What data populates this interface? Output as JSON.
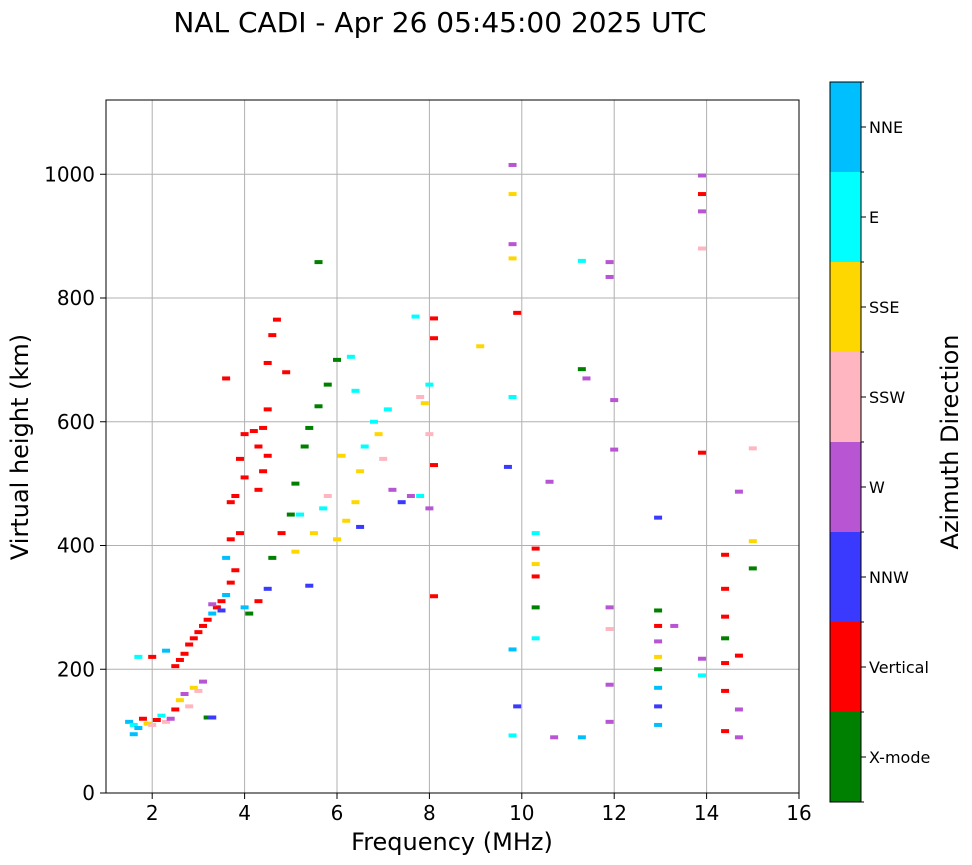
{
  "chart_data": {
    "type": "scatter",
    "title": "NAL CADI - Apr 26 05:45:00 2025 UTC",
    "xlabel": "Frequency (MHz)",
    "ylabel": "Virtual height (km)",
    "xlim": [
      1,
      16
    ],
    "ylim": [
      0,
      1120
    ],
    "xticks": [
      2,
      4,
      6,
      8,
      10,
      12,
      14,
      16
    ],
    "yticks": [
      0,
      200,
      400,
      600,
      800,
      1000
    ],
    "grid": true,
    "colorbar": {
      "label": "Azimuth Direction",
      "categories": [
        {
          "name": "X-mode",
          "color": "#008000"
        },
        {
          "name": "Vertical",
          "color": "#ff0000"
        },
        {
          "name": "NNW",
          "color": "#3a3aff"
        },
        {
          "name": "W",
          "color": "#b855d3"
        },
        {
          "name": "SSW",
          "color": "#ffb6c1"
        },
        {
          "name": "SSE",
          "color": "#ffd700"
        },
        {
          "name": "E",
          "color": "#00ffff"
        },
        {
          "name": "NNE",
          "color": "#00bfff"
        }
      ]
    },
    "echoes": [
      {
        "cat": "NNE",
        "f": 1.5,
        "h": 115
      },
      {
        "cat": "E",
        "f": 1.6,
        "h": 110
      },
      {
        "cat": "NNE",
        "f": 1.7,
        "h": 105
      },
      {
        "cat": "Vertical",
        "f": 1.8,
        "h": 120
      },
      {
        "cat": "SSE",
        "f": 1.9,
        "h": 112
      },
      {
        "cat": "NNE",
        "f": 1.6,
        "h": 95
      },
      {
        "cat": "SSW",
        "f": 2.0,
        "h": 110
      },
      {
        "cat": "Vertical",
        "f": 2.1,
        "h": 118
      },
      {
        "cat": "E",
        "f": 2.2,
        "h": 125
      },
      {
        "cat": "SSW",
        "f": 2.3,
        "h": 115
      },
      {
        "cat": "W",
        "f": 2.4,
        "h": 120
      },
      {
        "cat": "Vertical",
        "f": 2.5,
        "h": 135
      },
      {
        "cat": "SSE",
        "f": 2.6,
        "h": 150
      },
      {
        "cat": "W",
        "f": 2.7,
        "h": 160
      },
      {
        "cat": "SSW",
        "f": 2.8,
        "h": 140
      },
      {
        "cat": "SSE",
        "f": 2.9,
        "h": 170
      },
      {
        "cat": "SSW",
        "f": 3.0,
        "h": 165
      },
      {
        "cat": "W",
        "f": 3.1,
        "h": 180
      },
      {
        "cat": "X-mode",
        "f": 3.2,
        "h": 122
      },
      {
        "cat": "NNW",
        "f": 3.3,
        "h": 122
      },
      {
        "cat": "Vertical",
        "f": 2.0,
        "h": 220
      },
      {
        "cat": "E",
        "f": 1.7,
        "h": 220
      },
      {
        "cat": "NNE",
        "f": 2.3,
        "h": 230
      },
      {
        "cat": "Vertical",
        "f": 2.5,
        "h": 205
      },
      {
        "cat": "Vertical",
        "f": 2.6,
        "h": 215
      },
      {
        "cat": "Vertical",
        "f": 2.7,
        "h": 225
      },
      {
        "cat": "Vertical",
        "f": 2.8,
        "h": 240
      },
      {
        "cat": "Vertical",
        "f": 2.9,
        "h": 250
      },
      {
        "cat": "Vertical",
        "f": 3.0,
        "h": 260
      },
      {
        "cat": "Vertical",
        "f": 3.1,
        "h": 270
      },
      {
        "cat": "Vertical",
        "f": 3.2,
        "h": 280
      },
      {
        "cat": "NNE",
        "f": 3.3,
        "h": 290
      },
      {
        "cat": "Vertical",
        "f": 3.4,
        "h": 300
      },
      {
        "cat": "Vertical",
        "f": 3.5,
        "h": 310
      },
      {
        "cat": "NNE",
        "f": 3.6,
        "h": 320
      },
      {
        "cat": "Vertical",
        "f": 3.7,
        "h": 340
      },
      {
        "cat": "NNW",
        "f": 3.5,
        "h": 295
      },
      {
        "cat": "W",
        "f": 3.3,
        "h": 305
      },
      {
        "cat": "Vertical",
        "f": 3.8,
        "h": 360
      },
      {
        "cat": "NNE",
        "f": 3.6,
        "h": 380
      },
      {
        "cat": "Vertical",
        "f": 3.7,
        "h": 410
      },
      {
        "cat": "Vertical",
        "f": 3.9,
        "h": 420
      },
      {
        "cat": "X-mode",
        "f": 4.1,
        "h": 290
      },
      {
        "cat": "Vertical",
        "f": 3.7,
        "h": 470
      },
      {
        "cat": "Vertical",
        "f": 3.8,
        "h": 480
      },
      {
        "cat": "Vertical",
        "f": 4.0,
        "h": 510
      },
      {
        "cat": "Vertical",
        "f": 3.9,
        "h": 540
      },
      {
        "cat": "Vertical",
        "f": 4.0,
        "h": 580
      },
      {
        "cat": "Vertical",
        "f": 4.2,
        "h": 585
      },
      {
        "cat": "Vertical",
        "f": 4.4,
        "h": 590
      },
      {
        "cat": "Vertical",
        "f": 4.3,
        "h": 560
      },
      {
        "cat": "Vertical",
        "f": 4.5,
        "h": 545
      },
      {
        "cat": "Vertical",
        "f": 4.4,
        "h": 520
      },
      {
        "cat": "Vertical",
        "f": 4.3,
        "h": 490
      },
      {
        "cat": "Vertical",
        "f": 3.6,
        "h": 670
      },
      {
        "cat": "Vertical",
        "f": 4.5,
        "h": 695
      },
      {
        "cat": "Vertical",
        "f": 4.7,
        "h": 765
      },
      {
        "cat": "Vertical",
        "f": 4.6,
        "h": 740
      },
      {
        "cat": "Vertical",
        "f": 4.9,
        "h": 680
      },
      {
        "cat": "Vertical",
        "f": 4.5,
        "h": 620
      },
      {
        "cat": "NNE",
        "f": 4.0,
        "h": 300
      },
      {
        "cat": "Vertical",
        "f": 4.3,
        "h": 310
      },
      {
        "cat": "NNW",
        "f": 4.5,
        "h": 330
      },
      {
        "cat": "X-mode",
        "f": 4.6,
        "h": 380
      },
      {
        "cat": "Vertical",
        "f": 4.8,
        "h": 420
      },
      {
        "cat": "X-mode",
        "f": 5.0,
        "h": 450
      },
      {
        "cat": "X-mode",
        "f": 5.1,
        "h": 500
      },
      {
        "cat": "X-mode",
        "f": 5.3,
        "h": 560
      },
      {
        "cat": "X-mode",
        "f": 5.4,
        "h": 590
      },
      {
        "cat": "X-mode",
        "f": 5.6,
        "h": 625
      },
      {
        "cat": "X-mode",
        "f": 5.8,
        "h": 660
      },
      {
        "cat": "X-mode",
        "f": 6.0,
        "h": 700
      },
      {
        "cat": "X-mode",
        "f": 5.6,
        "h": 858
      },
      {
        "cat": "E",
        "f": 5.2,
        "h": 450
      },
      {
        "cat": "SSE",
        "f": 5.1,
        "h": 390
      },
      {
        "cat": "SSE",
        "f": 5.5,
        "h": 420
      },
      {
        "cat": "E",
        "f": 5.7,
        "h": 460
      },
      {
        "cat": "NNW",
        "f": 5.4,
        "h": 335
      },
      {
        "cat": "SSW",
        "f": 5.8,
        "h": 480
      },
      {
        "cat": "SSE",
        "f": 6.0,
        "h": 410
      },
      {
        "cat": "SSE",
        "f": 6.2,
        "h": 440
      },
      {
        "cat": "SSE",
        "f": 6.4,
        "h": 470
      },
      {
        "cat": "SSE",
        "f": 6.5,
        "h": 520
      },
      {
        "cat": "E",
        "f": 6.6,
        "h": 560
      },
      {
        "cat": "E",
        "f": 6.8,
        "h": 600
      },
      {
        "cat": "E",
        "f": 6.4,
        "h": 650
      },
      {
        "cat": "E",
        "f": 6.3,
        "h": 705
      },
      {
        "cat": "SSE",
        "f": 6.9,
        "h": 580
      },
      {
        "cat": "SSW",
        "f": 7.0,
        "h": 540
      },
      {
        "cat": "E",
        "f": 7.1,
        "h": 620
      },
      {
        "cat": "W",
        "f": 7.2,
        "h": 490
      },
      {
        "cat": "NNW",
        "f": 7.4,
        "h": 470
      },
      {
        "cat": "W",
        "f": 7.6,
        "h": 480
      },
      {
        "cat": "E",
        "f": 7.8,
        "h": 480
      },
      {
        "cat": "SSE",
        "f": 6.1,
        "h": 545
      },
      {
        "cat": "NNW",
        "f": 6.5,
        "h": 430
      },
      {
        "cat": "SSW",
        "f": 7.8,
        "h": 640
      },
      {
        "cat": "SSE",
        "f": 7.9,
        "h": 630
      },
      {
        "cat": "E",
        "f": 8.0,
        "h": 660
      },
      {
        "cat": "SSW",
        "f": 8.0,
        "h": 580
      },
      {
        "cat": "W",
        "f": 8.0,
        "h": 460
      },
      {
        "cat": "E",
        "f": 7.7,
        "h": 770
      },
      {
        "cat": "Vertical",
        "f": 8.1,
        "h": 767
      },
      {
        "cat": "Vertical",
        "f": 8.1,
        "h": 735
      },
      {
        "cat": "Vertical",
        "f": 8.1,
        "h": 530
      },
      {
        "cat": "Vertical",
        "f": 8.1,
        "h": 318
      },
      {
        "cat": "SSE",
        "f": 9.1,
        "h": 722
      },
      {
        "cat": "W",
        "f": 9.8,
        "h": 1015
      },
      {
        "cat": "SSE",
        "f": 9.8,
        "h": 968
      },
      {
        "cat": "W",
        "f": 9.8,
        "h": 887
      },
      {
        "cat": "SSE",
        "f": 9.8,
        "h": 864
      },
      {
        "cat": "Vertical",
        "f": 9.9,
        "h": 776
      },
      {
        "cat": "E",
        "f": 9.8,
        "h": 640
      },
      {
        "cat": "NNW",
        "f": 9.7,
        "h": 527
      },
      {
        "cat": "NNE",
        "f": 9.8,
        "h": 232
      },
      {
        "cat": "NNW",
        "f": 9.9,
        "h": 140
      },
      {
        "cat": "E",
        "f": 9.8,
        "h": 93
      },
      {
        "cat": "E",
        "f": 10.3,
        "h": 420
      },
      {
        "cat": "Vertical",
        "f": 10.3,
        "h": 395
      },
      {
        "cat": "SSE",
        "f": 10.3,
        "h": 370
      },
      {
        "cat": "Vertical",
        "f": 10.3,
        "h": 350
      },
      {
        "cat": "X-mode",
        "f": 10.3,
        "h": 300
      },
      {
        "cat": "E",
        "f": 10.3,
        "h": 250
      },
      {
        "cat": "W",
        "f": 10.6,
        "h": 503
      },
      {
        "cat": "W",
        "f": 10.7,
        "h": 90
      },
      {
        "cat": "E",
        "f": 11.3,
        "h": 860
      },
      {
        "cat": "X-mode",
        "f": 11.3,
        "h": 685
      },
      {
        "cat": "W",
        "f": 11.4,
        "h": 670
      },
      {
        "cat": "NNE",
        "f": 11.3,
        "h": 90
      },
      {
        "cat": "W",
        "f": 11.9,
        "h": 858
      },
      {
        "cat": "W",
        "f": 11.9,
        "h": 834
      },
      {
        "cat": "W",
        "f": 12.0,
        "h": 635
      },
      {
        "cat": "W",
        "f": 12.0,
        "h": 555
      },
      {
        "cat": "W",
        "f": 11.9,
        "h": 300
      },
      {
        "cat": "SSW",
        "f": 11.9,
        "h": 265
      },
      {
        "cat": "W",
        "f": 11.9,
        "h": 175
      },
      {
        "cat": "W",
        "f": 11.9,
        "h": 115
      },
      {
        "cat": "NNW",
        "f": 12.95,
        "h": 445
      },
      {
        "cat": "X-mode",
        "f": 12.95,
        "h": 295
      },
      {
        "cat": "Vertical",
        "f": 12.95,
        "h": 270
      },
      {
        "cat": "W",
        "f": 12.95,
        "h": 245
      },
      {
        "cat": "SSE",
        "f": 12.95,
        "h": 220
      },
      {
        "cat": "X-mode",
        "f": 12.95,
        "h": 200
      },
      {
        "cat": "NNE",
        "f": 12.95,
        "h": 170
      },
      {
        "cat": "NNW",
        "f": 12.95,
        "h": 140
      },
      {
        "cat": "NNE",
        "f": 12.95,
        "h": 110
      },
      {
        "cat": "W",
        "f": 13.3,
        "h": 270
      },
      {
        "cat": "W",
        "f": 13.9,
        "h": 998
      },
      {
        "cat": "Vertical",
        "f": 13.9,
        "h": 968
      },
      {
        "cat": "W",
        "f": 13.9,
        "h": 940
      },
      {
        "cat": "SSW",
        "f": 13.9,
        "h": 880
      },
      {
        "cat": "Vertical",
        "f": 13.9,
        "h": 550
      },
      {
        "cat": "W",
        "f": 13.9,
        "h": 217
      },
      {
        "cat": "E",
        "f": 13.9,
        "h": 190
      },
      {
        "cat": "Vertical",
        "f": 14.4,
        "h": 385
      },
      {
        "cat": "Vertical",
        "f": 14.4,
        "h": 330
      },
      {
        "cat": "Vertical",
        "f": 14.4,
        "h": 285
      },
      {
        "cat": "X-mode",
        "f": 14.4,
        "h": 250
      },
      {
        "cat": "Vertical",
        "f": 14.4,
        "h": 210
      },
      {
        "cat": "Vertical",
        "f": 14.4,
        "h": 165
      },
      {
        "cat": "Vertical",
        "f": 14.4,
        "h": 100
      },
      {
        "cat": "W",
        "f": 14.7,
        "h": 487
      },
      {
        "cat": "Vertical",
        "f": 14.7,
        "h": 222
      },
      {
        "cat": "W",
        "f": 14.7,
        "h": 135
      },
      {
        "cat": "W",
        "f": 14.7,
        "h": 90
      },
      {
        "cat": "SSW",
        "f": 15.0,
        "h": 557
      },
      {
        "cat": "SSE",
        "f": 15.0,
        "h": 407
      },
      {
        "cat": "X-mode",
        "f": 15.0,
        "h": 363
      }
    ]
  }
}
